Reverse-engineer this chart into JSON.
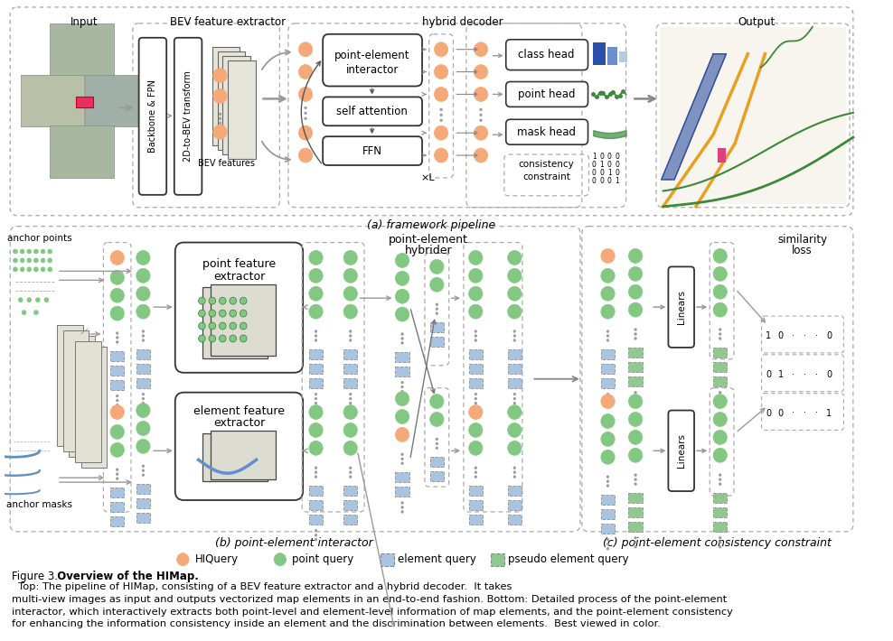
{
  "colors": {
    "orange": "#F5A878",
    "green": "#82C882",
    "blue_light": "#A8C4E0",
    "green_light": "#90C890",
    "bg": "#FFFFFF",
    "border_dash": "#AAAAAA",
    "border_solid": "#333333",
    "arrow_gray": "#999999",
    "text_black": "#000000",
    "dark_blue_bar": "#2B4FAA",
    "mid_blue_bar": "#6B8FCC",
    "light_blue_bar": "#B8C8E8",
    "orange_line": "#E8A020",
    "green_line": "#3A8A3A",
    "blue_line": "#3050A0",
    "pink_rect": "#E04080",
    "gray_sheet": "#D8D8C8",
    "bev_gray": "#E0E0D4"
  },
  "fig_label_a": "(a) framework pipeline",
  "fig_label_b": "(b) point-element interactor",
  "fig_label_c": "(c) point-element consistency constraint",
  "legend_items": [
    "HIQuery",
    "point query",
    "element query",
    "pseudo element query"
  ],
  "caption_prefix": "Figure 3.",
  "caption_bold": "  Overview of the HIMap.",
  "caption_body": "  Top: The pipeline of HIMap, consisting of a BEV feature extractor and a hybrid decoder.  It takes\nmulti-view images as input and outputs vectorized map elements in an end-to-end fashion. Bottom: Detailed process of the point-element\ninteractor, which interactively extracts both point-level and element-level information of map elements, and the point-element consistency\nfor enhancing the information consistency inside an element and the discrimination between elements.  Best viewed in color."
}
